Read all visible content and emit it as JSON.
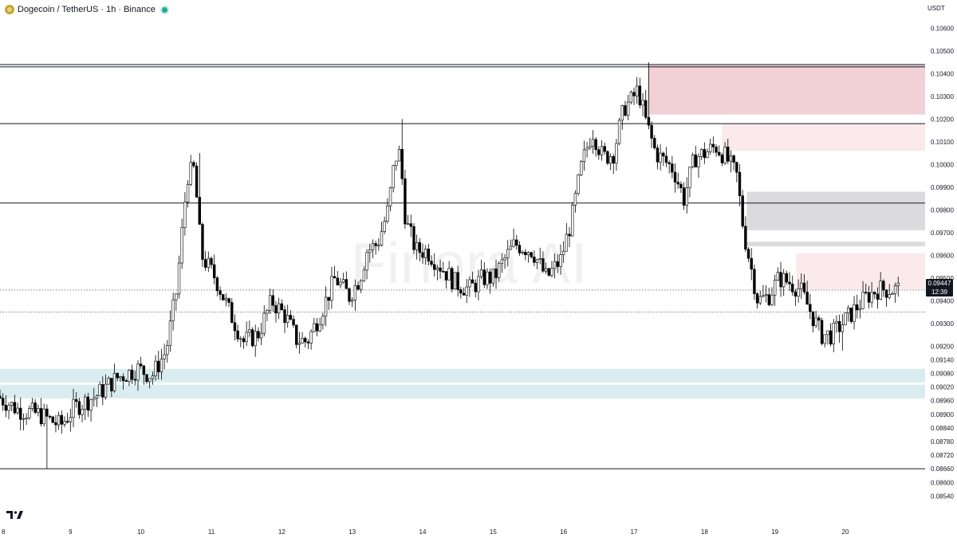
{
  "legend": {
    "symbol": "Dogecoin",
    "separator": "/",
    "quote": "TetherUS",
    "interval": "1h",
    "exchange": "Binance",
    "text": "Dogecoin / TetherUS · 1h · Binance",
    "coin_icon": "dogecoin-icon",
    "status_icon": "live-dot-icon"
  },
  "unit": "USDT",
  "watermark": "Finora AI",
  "branding_icon": "tradingview-logo-icon",
  "last_price": {
    "value": "0.09447",
    "countdown": "12:39"
  },
  "colors": {
    "bull": "#000000",
    "bear": "#000000",
    "supply_zone": "#e7b6bd",
    "demand_zone": "#cfe9ed",
    "neutral_zone": "#cfcfd1",
    "grid_line": "#131722"
  },
  "chart_data": {
    "type": "candlestick",
    "title": "",
    "xlabel": "",
    "ylabel": "",
    "ylim": [
      0.0845,
      0.1064
    ],
    "x_ticks": [
      "8",
      "9",
      "10",
      "11",
      "12",
      "13",
      "14",
      "15",
      "16",
      "17",
      "18",
      "19",
      "20"
    ],
    "y_ticks": [
      "0.10600",
      "0.10500",
      "0.10400",
      "0.10300",
      "0.10200",
      "0.10100",
      "0.10000",
      "0.09900",
      "0.09800",
      "0.09700",
      "0.09600",
      "0.09500",
      "0.09400",
      "0.09300",
      "0.09200",
      "0.09140",
      "0.09080",
      "0.09020",
      "0.08960",
      "0.08900",
      "0.08840",
      "0.08780",
      "0.08720",
      "0.08660",
      "0.08600",
      "0.08540"
    ],
    "horizontal_levels": [
      0.1044,
      0.1043,
      0.1018,
      0.0983,
      0.0866
    ],
    "dotted_levels": [
      0.09447,
      0.0935
    ],
    "zones": [
      {
        "kind": "supply",
        "start_day": 17.2,
        "top": 0.1044,
        "bottom": 0.1022
      },
      {
        "kind": "supply-light",
        "start_day": 18.25,
        "top": 0.1018,
        "bottom": 0.1006
      },
      {
        "kind": "neutral",
        "start_day": 18.6,
        "top": 0.0988,
        "bottom": 0.0971
      },
      {
        "kind": "neutral",
        "start_day": 18.6,
        "top": 0.0966,
        "bottom": 0.0964
      },
      {
        "kind": "supply-light",
        "start_day": 19.3,
        "top": 0.0961,
        "bottom": 0.0945
      },
      {
        "kind": "demand",
        "start_day": 7.9,
        "top": 0.091,
        "bottom": 0.0904
      },
      {
        "kind": "demand",
        "start_day": 7.9,
        "top": 0.0903,
        "bottom": 0.0897
      }
    ],
    "x_day_range": [
      8.0,
      20.95
    ],
    "waypoints": [
      [
        8.0,
        0.0898
      ],
      [
        8.3,
        0.0892
      ],
      [
        8.6,
        0.089
      ],
      [
        8.9,
        0.0885
      ],
      [
        9.1,
        0.0893
      ],
      [
        9.4,
        0.0898
      ],
      [
        9.7,
        0.0906
      ],
      [
        10.0,
        0.091
      ],
      [
        10.2,
        0.0907
      ],
      [
        10.4,
        0.0918
      ],
      [
        10.55,
        0.0945
      ],
      [
        10.7,
        0.0995
      ],
      [
        10.8,
        0.0998
      ],
      [
        10.9,
        0.096
      ],
      [
        11.1,
        0.095
      ],
      [
        11.3,
        0.0935
      ],
      [
        11.5,
        0.0922
      ],
      [
        11.7,
        0.0925
      ],
      [
        11.9,
        0.094
      ],
      [
        12.1,
        0.0933
      ],
      [
        12.25,
        0.0923
      ],
      [
        12.4,
        0.0922
      ],
      [
        12.6,
        0.0935
      ],
      [
        12.8,
        0.095
      ],
      [
        13.0,
        0.0942
      ],
      [
        13.15,
        0.095
      ],
      [
        13.25,
        0.0962
      ],
      [
        13.4,
        0.0965
      ],
      [
        13.55,
        0.098
      ],
      [
        13.65,
        0.1003
      ],
      [
        13.72,
        0.1005
      ],
      [
        13.8,
        0.0975
      ],
      [
        13.95,
        0.0962
      ],
      [
        14.1,
        0.0962
      ],
      [
        14.3,
        0.0955
      ],
      [
        14.5,
        0.0948
      ],
      [
        14.7,
        0.0945
      ],
      [
        14.9,
        0.095
      ],
      [
        15.05,
        0.095
      ],
      [
        15.2,
        0.0958
      ],
      [
        15.35,
        0.0965
      ],
      [
        15.6,
        0.0962
      ],
      [
        15.8,
        0.095
      ],
      [
        16.0,
        0.0958
      ],
      [
        16.15,
        0.0975
      ],
      [
        16.3,
        0.1
      ],
      [
        16.45,
        0.1015
      ],
      [
        16.6,
        0.1003
      ],
      [
        16.75,
        0.1005
      ],
      [
        16.9,
        0.1025
      ],
      [
        17.0,
        0.1028
      ],
      [
        17.1,
        0.1033
      ],
      [
        17.2,
        0.102
      ],
      [
        17.35,
        0.1005
      ],
      [
        17.6,
        0.0998
      ],
      [
        17.75,
        0.0985
      ],
      [
        17.9,
        0.1003
      ],
      [
        18.05,
        0.1005
      ],
      [
        18.2,
        0.1008
      ],
      [
        18.35,
        0.1003
      ],
      [
        18.5,
        0.0995
      ],
      [
        18.6,
        0.097
      ],
      [
        18.7,
        0.0955
      ],
      [
        18.8,
        0.094
      ],
      [
        18.95,
        0.0942
      ],
      [
        19.1,
        0.095
      ],
      [
        19.25,
        0.0948
      ],
      [
        19.4,
        0.0945
      ],
      [
        19.55,
        0.0935
      ],
      [
        19.7,
        0.0925
      ],
      [
        19.85,
        0.0925
      ],
      [
        20.0,
        0.093
      ],
      [
        20.2,
        0.0937
      ],
      [
        20.35,
        0.0942
      ],
      [
        20.5,
        0.0945
      ]
    ],
    "extremes": [
      {
        "day": 8.65,
        "low": 0.0866
      },
      {
        "day": 10.82,
        "high": 0.1005
      },
      {
        "day": 13.7,
        "high": 0.102
      },
      {
        "day": 17.22,
        "high": 0.1045
      },
      {
        "day": 19.95,
        "low": 0.0918
      }
    ]
  }
}
